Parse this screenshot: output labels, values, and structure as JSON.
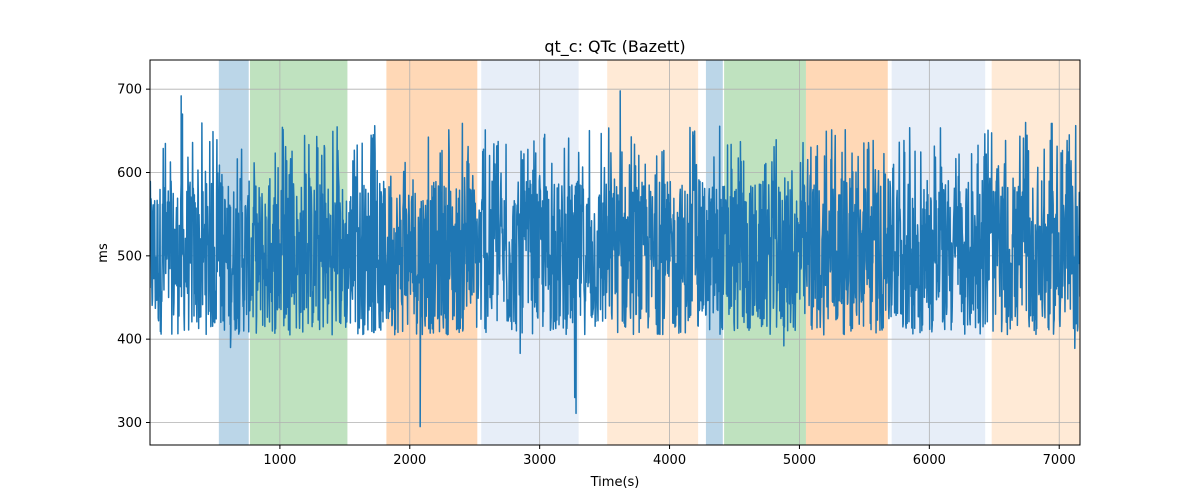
{
  "chart_data": {
    "type": "line",
    "title": "qt_c: QTc (Bazett)",
    "xlabel": "Time(s)",
    "ylabel": "ms",
    "xlim": [
      0,
      7160
    ],
    "ylim": [
      273,
      735
    ],
    "xticks": [
      1000,
      2000,
      3000,
      4000,
      5000,
      6000,
      7000
    ],
    "yticks": [
      300,
      400,
      500,
      600,
      700
    ],
    "grid": true,
    "line_color": "#1f77b4",
    "bands": [
      {
        "start": 530,
        "end": 760,
        "color": "#1f77b4",
        "opacity": 0.3
      },
      {
        "start": 770,
        "end": 1520,
        "color": "#2ca02c",
        "opacity": 0.3
      },
      {
        "start": 1820,
        "end": 2520,
        "color": "#ff7f0e",
        "opacity": 0.3
      },
      {
        "start": 2550,
        "end": 3300,
        "color": "#aec7e8",
        "opacity": 0.3
      },
      {
        "start": 3520,
        "end": 4220,
        "color": "#ffbb78",
        "opacity": 0.3
      },
      {
        "start": 4280,
        "end": 4410,
        "color": "#1f77b4",
        "opacity": 0.3
      },
      {
        "start": 4420,
        "end": 5050,
        "color": "#2ca02c",
        "opacity": 0.3
      },
      {
        "start": 5050,
        "end": 5680,
        "color": "#ff7f0e",
        "opacity": 0.3
      },
      {
        "start": 5710,
        "end": 6430,
        "color": "#aec7e8",
        "opacity": 0.3
      },
      {
        "start": 6480,
        "end": 7160,
        "color": "#ffbb78",
        "opacity": 0.3
      }
    ],
    "series": [
      {
        "base_range": [
          405,
          590
        ],
        "spikes": [
          {
            "x": 240,
            "y": 692
          },
          {
            "x": 250,
            "y": 670
          },
          {
            "x": 620,
            "y": 390
          },
          {
            "x": 2080,
            "y": 295
          },
          {
            "x": 2850,
            "y": 383
          },
          {
            "x": 3280,
            "y": 311
          },
          {
            "x": 3270,
            "y": 330
          },
          {
            "x": 3620,
            "y": 698
          },
          {
            "x": 4880,
            "y": 392
          },
          {
            "x": 7120,
            "y": 389
          }
        ]
      }
    ]
  }
}
